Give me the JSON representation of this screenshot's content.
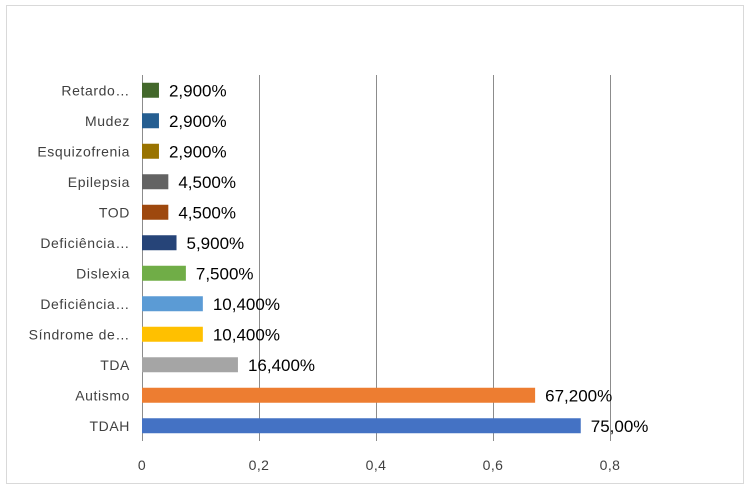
{
  "chart_data": {
    "type": "bar",
    "orientation": "horizontal",
    "categories": [
      "TDAH",
      "Autismo",
      "TDA",
      "Síndrome de…",
      "Deficiência…",
      "Dislexia",
      "Deficiência…",
      "TOD",
      "Epilepsia",
      "Esquizofrenia",
      "Mudez",
      "Retardo…"
    ],
    "values": [
      0.75,
      0.672,
      0.164,
      0.104,
      0.104,
      0.075,
      0.059,
      0.045,
      0.045,
      0.029,
      0.029,
      0.029
    ],
    "data_labels": [
      "75,00%",
      "67,200%",
      "16,400%",
      "10,400%",
      "10,400%",
      "7,500%",
      "5,900%",
      "4,500%",
      "4,500%",
      "2,900%",
      "2,900%",
      "2,900%"
    ],
    "colors": [
      "#4472c4",
      "#ed7d31",
      "#a5a5a5",
      "#ffc000",
      "#5b9bd5",
      "#70ad47",
      "#264478",
      "#9e480e",
      "#636363",
      "#997300",
      "#255e91",
      "#43682b"
    ],
    "xlim": [
      0,
      0.8
    ],
    "x_ticks": [
      0,
      0.2,
      0.4,
      0.6,
      0.8
    ],
    "x_tick_labels": [
      "0",
      "0,2",
      "0,4",
      "0,6",
      "0,8"
    ],
    "grid": "vertical"
  }
}
